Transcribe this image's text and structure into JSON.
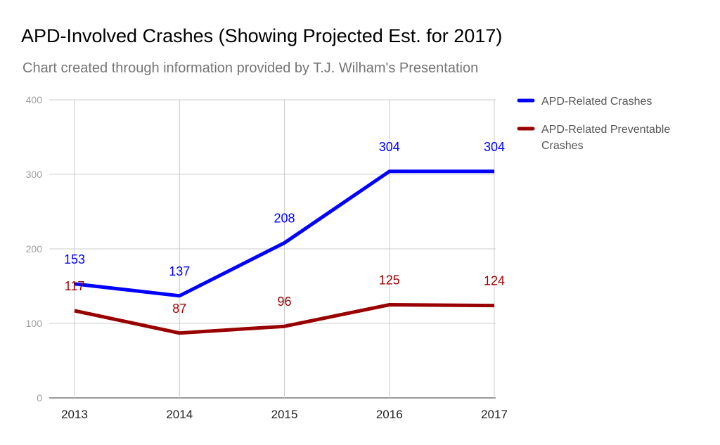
{
  "chart_data": {
    "type": "line",
    "title": "APD-Involved Crashes (Showing Projected Est. for 2017)",
    "subtitle": "Chart created through information provided by T.J. Wilham's Presentation",
    "xlabel": "",
    "ylabel": "",
    "categories": [
      "2013",
      "2014",
      "2015",
      "2016",
      "2017"
    ],
    "ylim": [
      0,
      400
    ],
    "yticks": [
      0,
      100,
      200,
      300,
      400
    ],
    "grid": true,
    "legend_position": "right",
    "series": [
      {
        "name": "APD-Related Crashes",
        "color": "#0000ff",
        "values": [
          153,
          137,
          208,
          304,
          304
        ]
      },
      {
        "name": "APD-Related Preventable Crashes",
        "color": "#990000",
        "values": [
          117,
          87,
          96,
          125,
          124
        ]
      }
    ]
  }
}
